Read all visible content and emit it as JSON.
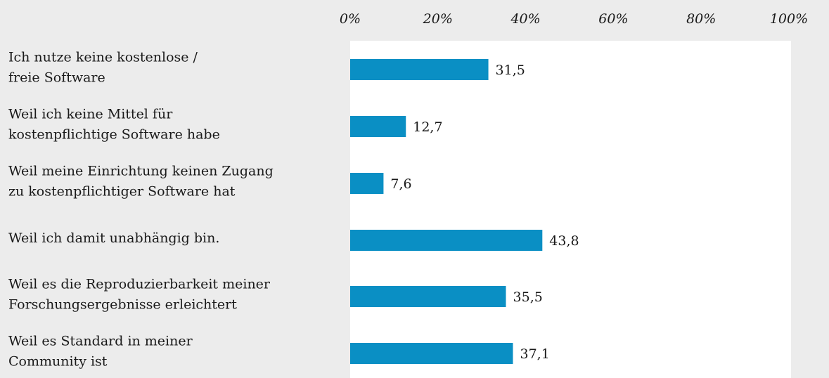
{
  "chart_data": {
    "type": "bar",
    "orientation": "horizontal",
    "categories": [
      [
        "Ich nutze keine kostenlose /",
        "freie Software"
      ],
      [
        "Weil ich keine Mittel für",
        "kostenpflichtige Software habe"
      ],
      [
        "Weil meine Einrichtung keinen Zugang",
        "zu kostenpflichtiger Software hat"
      ],
      [
        "Weil ich damit unabhängig bin."
      ],
      [
        "Weil es die Reproduzierbarkeit meiner",
        "Forschungsergebnisse erleichtert"
      ],
      [
        "Weil es Standard in meiner",
        "Community ist"
      ]
    ],
    "values": [
      31.5,
      12.7,
      7.6,
      43.8,
      35.5,
      37.1
    ],
    "value_labels": [
      "31,5",
      "12,7",
      "7,6",
      "43,8",
      "35,5",
      "37,1"
    ],
    "color": "#0a8fc4",
    "xlim": [
      0,
      100
    ],
    "xticks": [
      {
        "value": 0,
        "label": "0%"
      },
      {
        "value": 20,
        "label": "20%"
      },
      {
        "value": 40,
        "label": "40%"
      },
      {
        "value": 60,
        "label": "60%"
      },
      {
        "value": 80,
        "label": "80%"
      },
      {
        "value": 100,
        "label": "100%"
      }
    ],
    "grid": false
  }
}
